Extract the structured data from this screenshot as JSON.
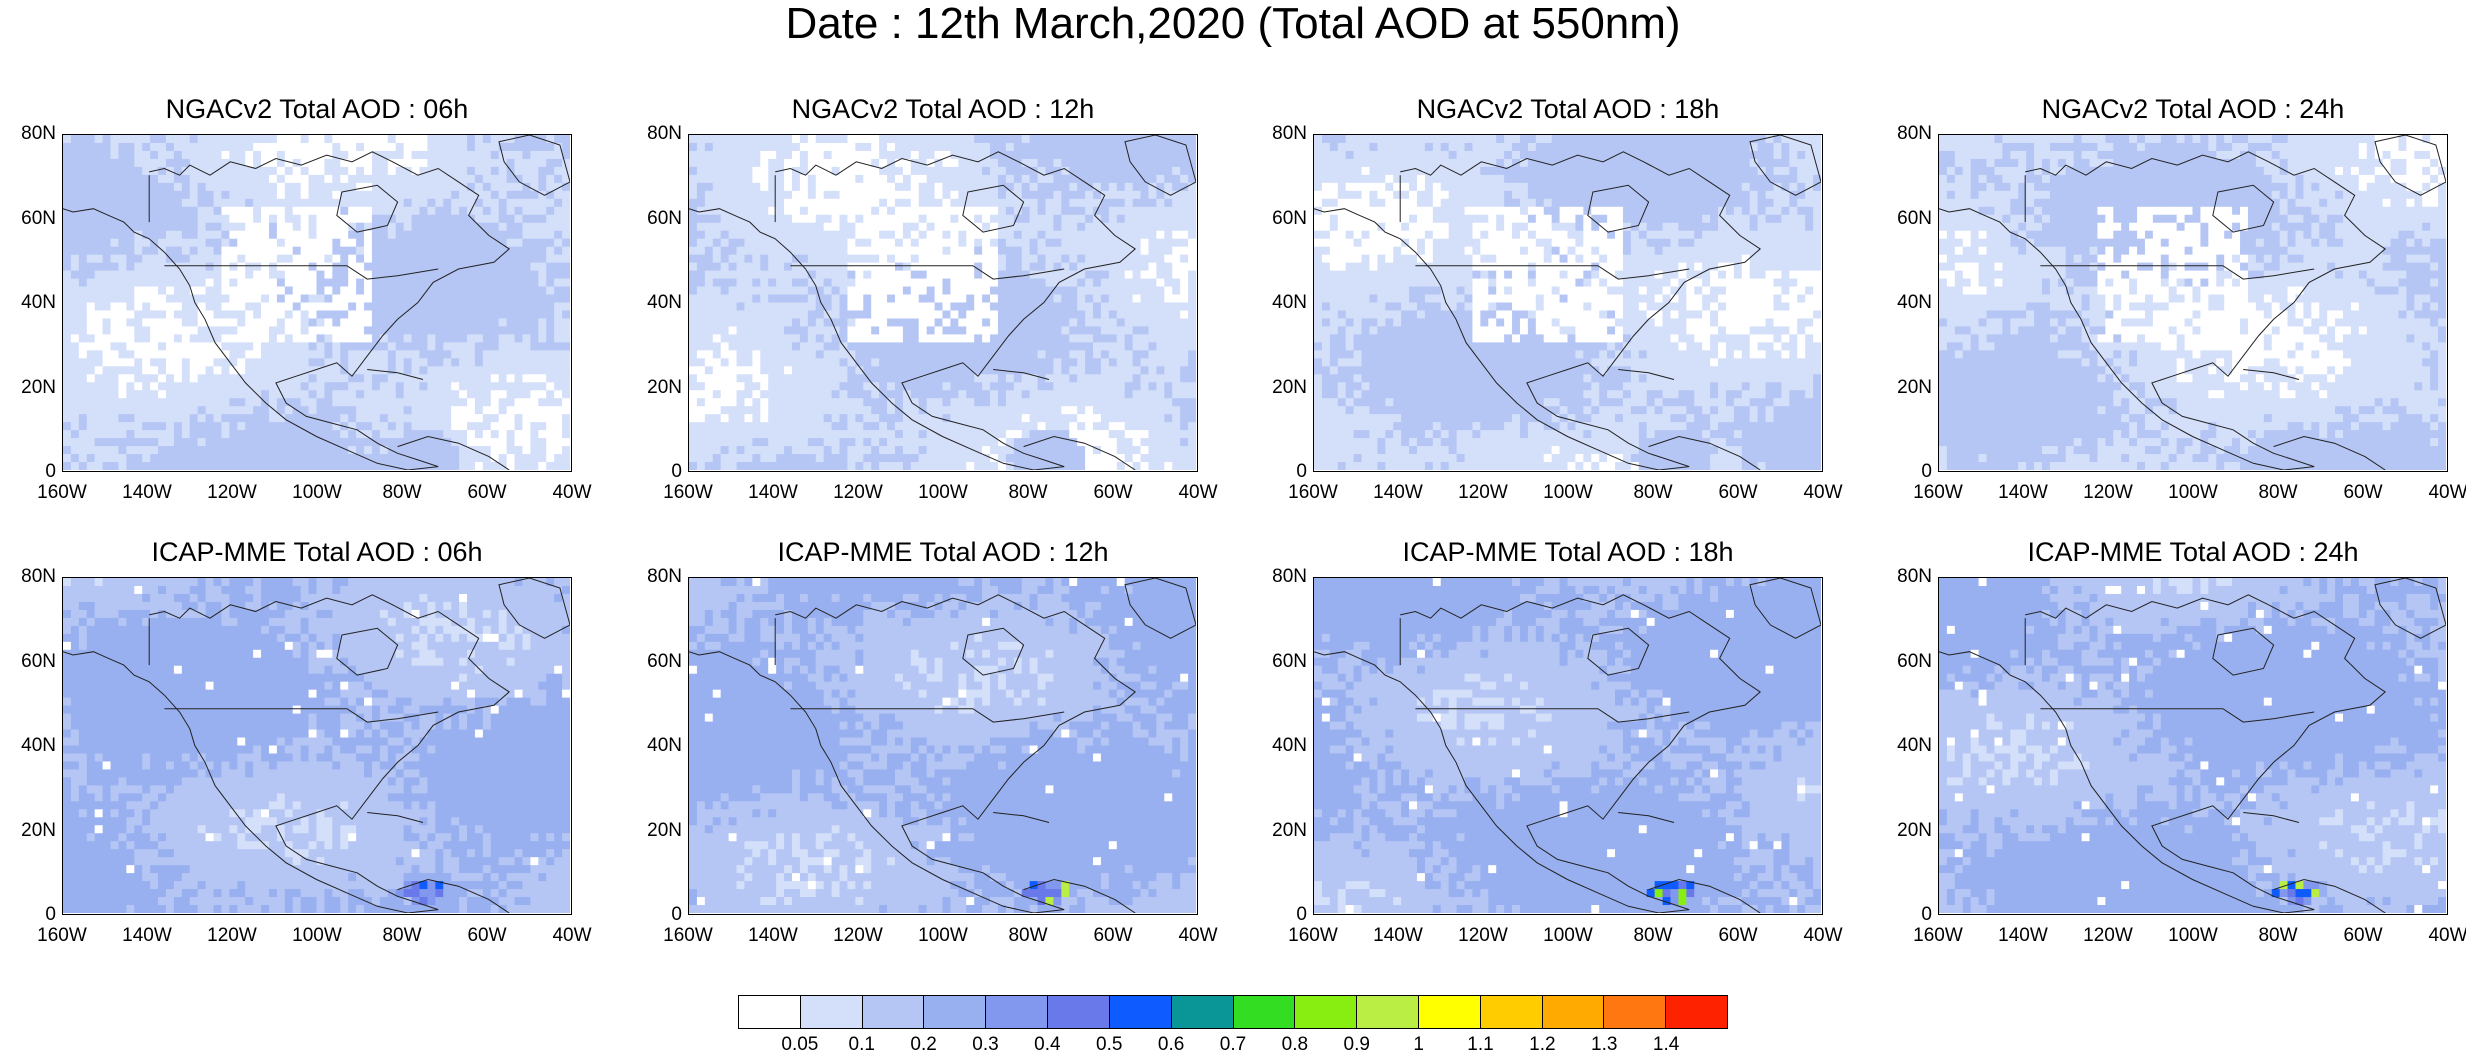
{
  "title": "Date : 12th March,2020 (Total AOD at 550nm)",
  "panels": [
    {
      "title": "NGACv2 Total AOD : 06h",
      "model": "NGACv2"
    },
    {
      "title": "NGACv2 Total AOD : 12h",
      "model": "NGACv2"
    },
    {
      "title": "NGACv2 Total AOD : 18h",
      "model": "NGACv2"
    },
    {
      "title": "NGACv2 Total AOD : 24h",
      "model": "NGACv2"
    },
    {
      "title": "ICAP-MME Total AOD : 06h",
      "model": "ICAP-MME"
    },
    {
      "title": "ICAP-MME Total AOD : 12h",
      "model": "ICAP-MME"
    },
    {
      "title": "ICAP-MME Total AOD : 18h",
      "model": "ICAP-MME"
    },
    {
      "title": "ICAP-MME Total AOD : 24h",
      "model": "ICAP-MME"
    }
  ],
  "lat_ticks": [
    "80N",
    "60N",
    "40N",
    "20N",
    "0"
  ],
  "lon_ticks": [
    "160W",
    "140W",
    "120W",
    "100W",
    "80W",
    "60W",
    "40W"
  ],
  "colorbar": {
    "labels": [
      "0.05",
      "0.1",
      "0.2",
      "0.3",
      "0.4",
      "0.5",
      "0.6",
      "0.7",
      "0.8",
      "0.9",
      "1",
      "1.1",
      "1.2",
      "1.3",
      "1.4"
    ],
    "colors": [
      "#ffffff",
      "#d4dffa",
      "#b5c6f5",
      "#98b0f0",
      "#8198ee",
      "#6a79ea",
      "#0e5cff",
      "#0a9696",
      "#33dd22",
      "#88ee11",
      "#bbee44",
      "#ffff00",
      "#ffcc00",
      "#ffaa00",
      "#ff7711",
      "#ff2200"
    ]
  }
}
